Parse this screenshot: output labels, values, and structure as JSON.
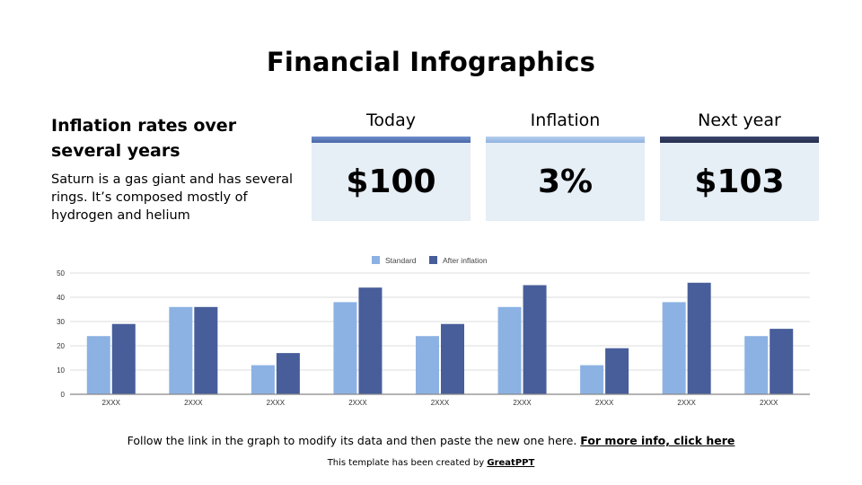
{
  "page": {
    "title": "Financial Infographics",
    "subtitle": "Inflation rates over several years",
    "description": "Saturn is a gas giant and has several rings. It’s composed mostly of hydrogen and helium"
  },
  "cards": [
    {
      "label": "Today",
      "value": "$100",
      "bar_color": "#4f72b8"
    },
    {
      "label": "Inflation",
      "value": "3%",
      "bar_color": "#9dbde6"
    },
    {
      "label": "Next year",
      "value": "$103",
      "bar_color": "#2b3558"
    }
  ],
  "footer": {
    "text": "Follow the link in the graph to modify its data and then paste the new one here.",
    "link_label": "For more info, click here",
    "credit_text": "This template has been created by",
    "credit_link": "GreatPPT"
  },
  "colors": {
    "standard": "#8cb2e3",
    "after_inflation": "#475e9a",
    "card_bg": "#e6eef6",
    "grid": "#dddddd",
    "axis": "#888888"
  },
  "chart_data": {
    "type": "bar",
    "title": "",
    "xlabel": "",
    "ylabel": "",
    "categories": [
      "2XXX",
      "2XXX",
      "2XXX",
      "2XXX",
      "2XXX",
      "2XXX",
      "2XXX",
      "2XXX",
      "2XXX"
    ],
    "series": [
      {
        "name": "Standard",
        "values": [
          24,
          36,
          12,
          38,
          24,
          36,
          12,
          38,
          24
        ]
      },
      {
        "name": "After inflation",
        "values": [
          29,
          36,
          17,
          44,
          29,
          45,
          19,
          46,
          27
        ]
      }
    ],
    "ylim": [
      0,
      50
    ],
    "yticks": [
      0,
      10,
      20,
      30,
      40,
      50
    ],
    "grid": true,
    "legend_position": "top"
  }
}
